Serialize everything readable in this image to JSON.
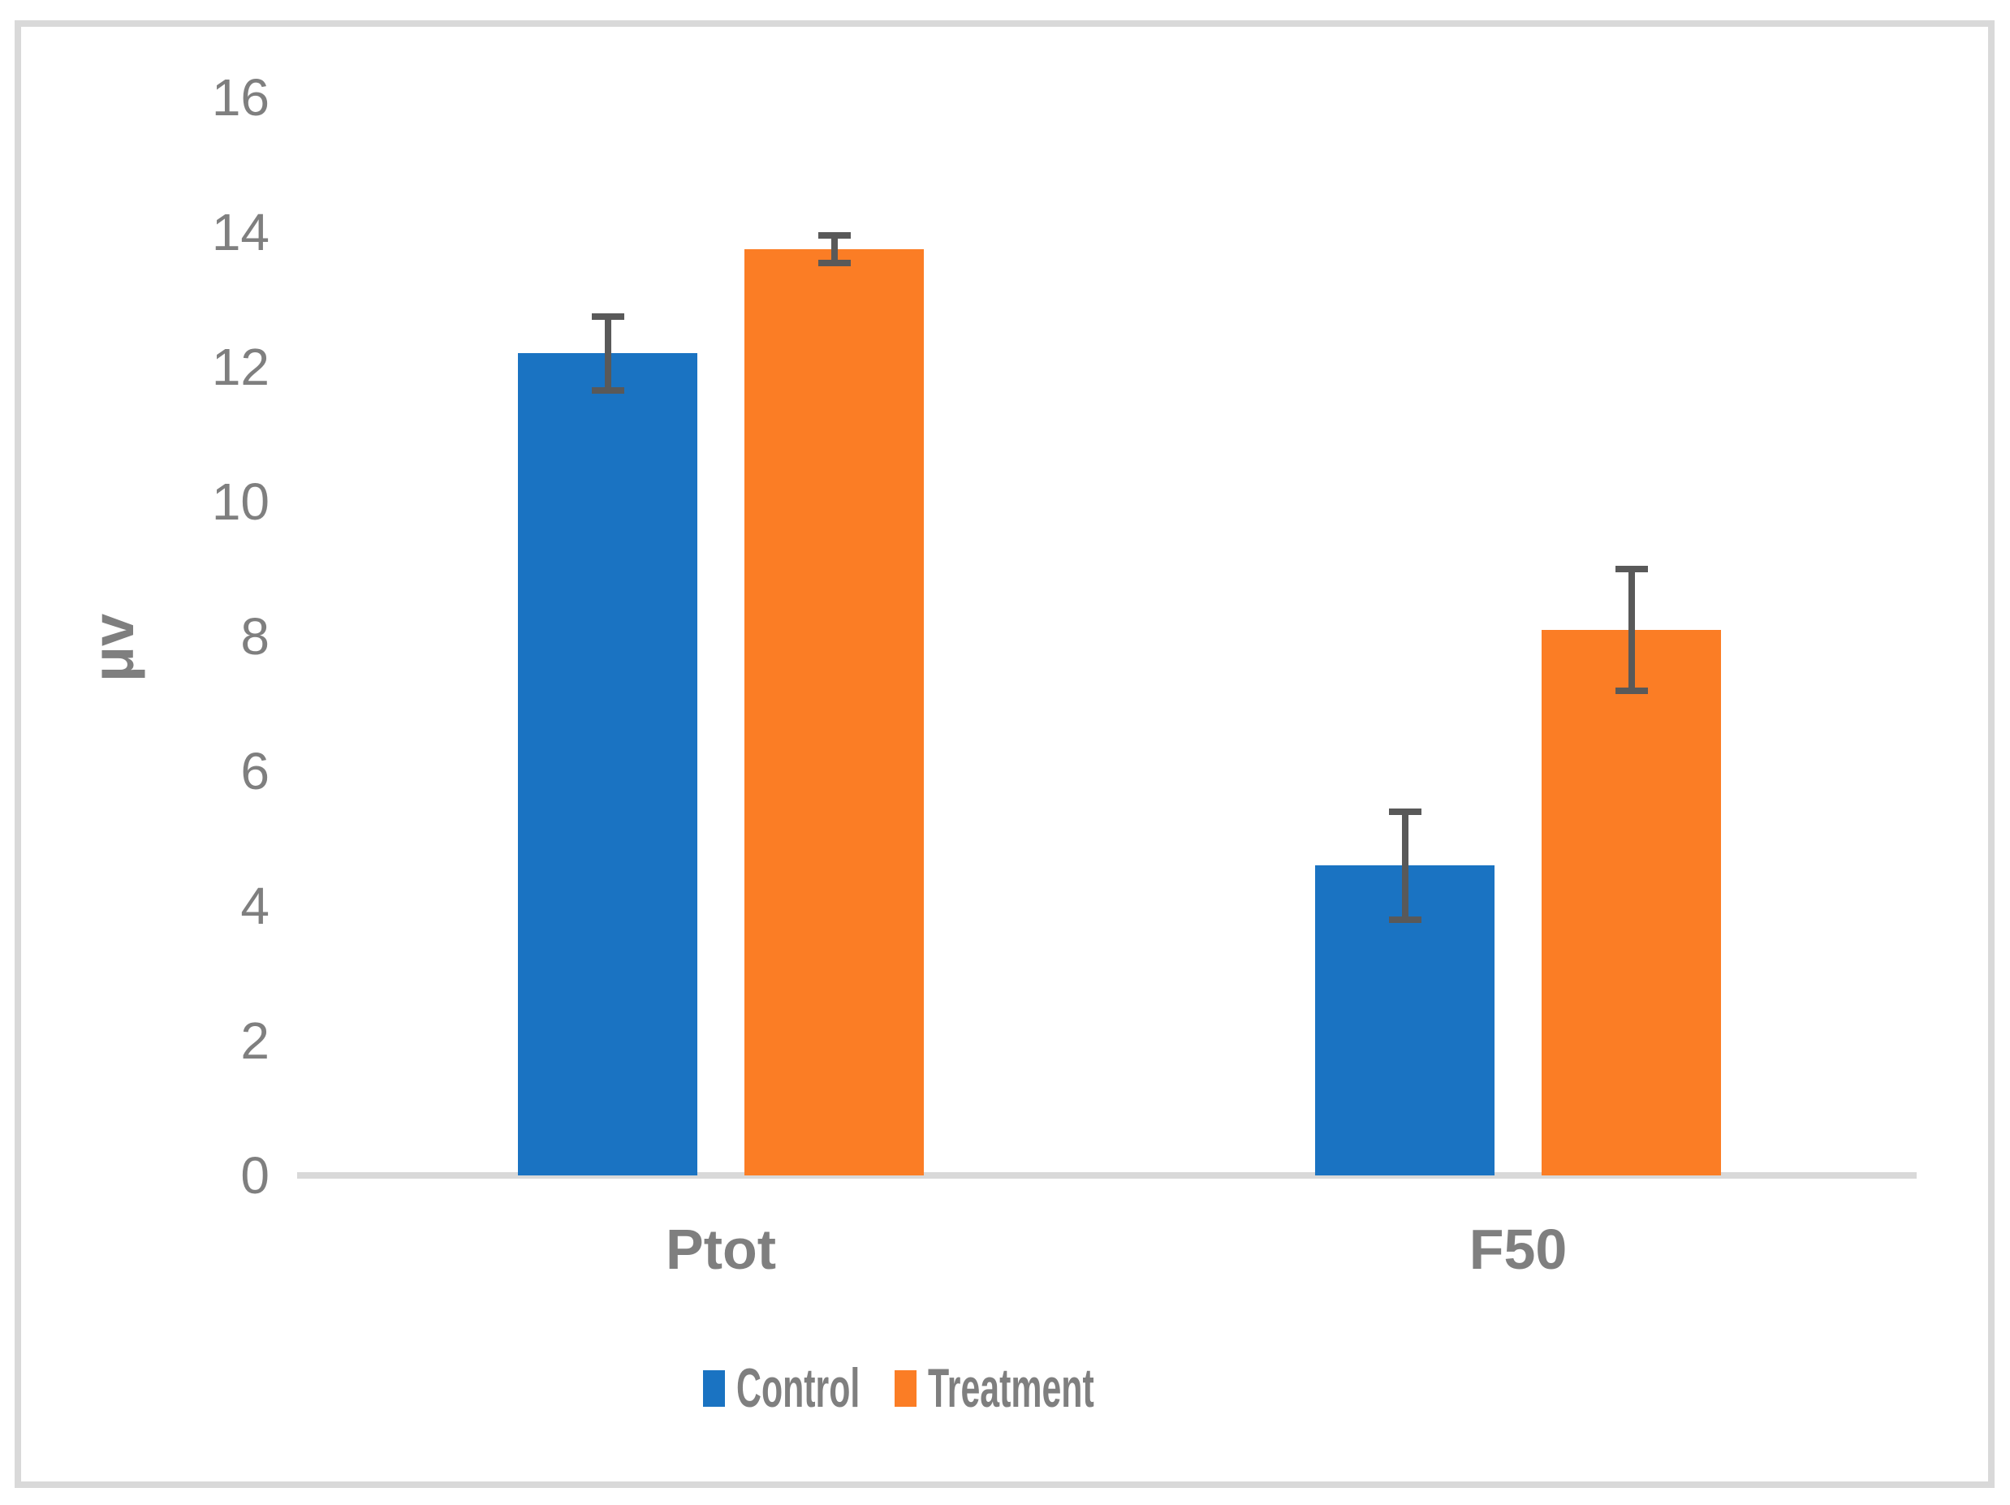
{
  "chart_data": {
    "type": "bar",
    "title": "",
    "categories": [
      "Ptot",
      "F50"
    ],
    "series": [
      {
        "name": "Control",
        "color": "#1A73C2",
        "values": [
          12.2,
          4.6
        ],
        "errors": [
          0.6,
          0.85
        ]
      },
      {
        "name": "Treatment",
        "color": "#FB7D25",
        "values": [
          13.75,
          8.1
        ],
        "errors": [
          0.25,
          0.95
        ]
      }
    ],
    "ylabel": "μv",
    "ylim": [
      0,
      16
    ],
    "ytick_step": 2,
    "grid": false,
    "legend_position": "bottom",
    "error_bars": true,
    "error_bar_color": "#595959",
    "axis_line_color": "#D9D9D9",
    "border_color": "#D9D9D9",
    "text_color": "#7F7F7F"
  }
}
